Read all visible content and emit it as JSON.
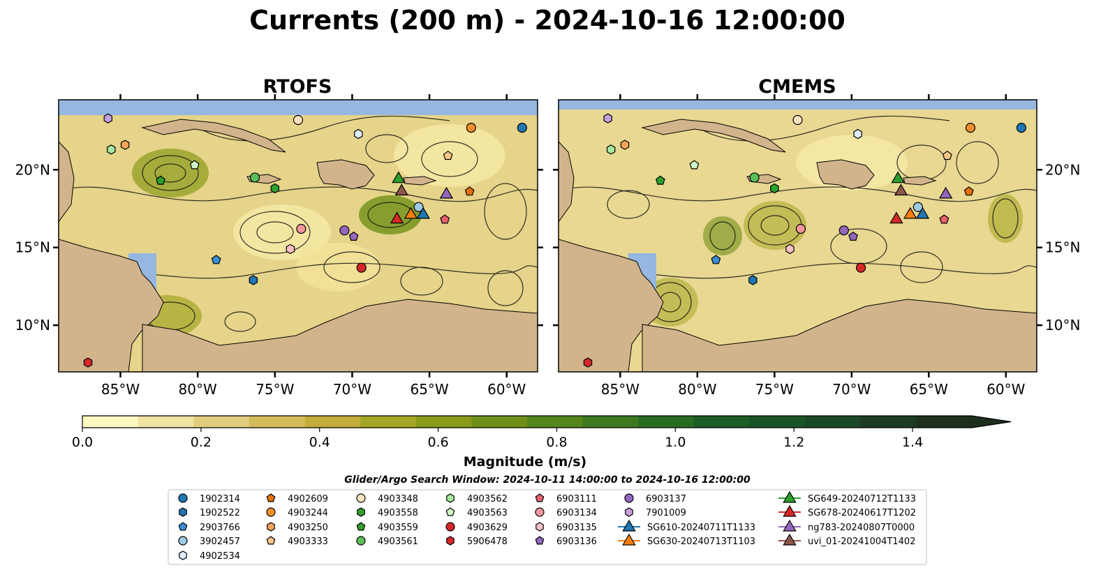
{
  "title": "Currents (200 m) - 2024-10-16 12:00:00",
  "panels": [
    {
      "title": "RTOFS"
    },
    {
      "title": "CMEMS"
    }
  ],
  "lon_ticks": [
    "85°W",
    "80°W",
    "75°W",
    "70°W",
    "65°W",
    "60°W"
  ],
  "lat_ticks": [
    "20°N",
    "15°N",
    "10°N"
  ],
  "map_extent": {
    "lon": [
      -89,
      -58
    ],
    "lat": [
      7,
      24.5
    ]
  },
  "colorbar": {
    "label": "Magnitude (m/s)",
    "ticks": [
      "0.0",
      "0.2",
      "0.4",
      "0.6",
      "0.8",
      "1.0",
      "1.2",
      "1.4"
    ],
    "range": [
      0,
      1.5
    ],
    "colors": [
      "#fdf7c0",
      "#f1e3a1",
      "#e2cd7e",
      "#d4bc5a",
      "#c2ad3c",
      "#a5a626",
      "#8a9b1a",
      "#6f9018",
      "#55851b",
      "#3d7a1f",
      "#286c22",
      "#1a5e25",
      "#185325",
      "#1a4726",
      "#1c3b24",
      "#1d2f1d"
    ]
  },
  "search_window": "Glider/Argo Search Window: 2024-10-11 14:00:00 to 2024-10-16 12:00:00",
  "legend": [
    {
      "label": "1902314",
      "shape": "circle",
      "color": "#1f77b4"
    },
    {
      "label": "1902522",
      "shape": "hexagon",
      "color": "#1f77b4"
    },
    {
      "label": "2903766",
      "shape": "pentagon",
      "color": "#3b8fd6"
    },
    {
      "label": "3902457",
      "shape": "circle",
      "color": "#9ecae1"
    },
    {
      "label": "4902534",
      "shape": "hexagon",
      "color": "#ddeeff"
    },
    {
      "label": "4902609",
      "shape": "pentagon",
      "color": "#e6700a"
    },
    {
      "label": "4903244",
      "shape": "circle",
      "color": "#f28e2b"
    },
    {
      "label": "4903250",
      "shape": "hexagon",
      "color": "#f5a55a"
    },
    {
      "label": "4903333",
      "shape": "pentagon",
      "color": "#f7c68a"
    },
    {
      "label": "4903348",
      "shape": "circle",
      "color": "#fde1c0"
    },
    {
      "label": "4903558",
      "shape": "hexagon",
      "color": "#2ca02c"
    },
    {
      "label": "4903559",
      "shape": "pentagon",
      "color": "#2ca02c"
    },
    {
      "label": "4903561",
      "shape": "circle",
      "color": "#5bc05b"
    },
    {
      "label": "4903562",
      "shape": "hexagon",
      "color": "#a8e6a0"
    },
    {
      "label": "4903563",
      "shape": "pentagon",
      "color": "#d0f5c8"
    },
    {
      "label": "4903629",
      "shape": "circle",
      "color": "#d62728"
    },
    {
      "label": "5906478",
      "shape": "hexagon",
      "color": "#d62728"
    },
    {
      "label": "6903111",
      "shape": "pentagon",
      "color": "#e8616f"
    },
    {
      "label": "6903134",
      "shape": "circle",
      "color": "#f4949c"
    },
    {
      "label": "6903135",
      "shape": "hexagon",
      "color": "#f8c0c6"
    },
    {
      "label": "6903136",
      "shape": "pentagon",
      "color": "#9467bd"
    },
    {
      "label": "6903137",
      "shape": "circle",
      "color": "#9467bd"
    },
    {
      "label": "7901009",
      "shape": "hexagon",
      "color": "#c5a0e0"
    },
    {
      "label": "SG610-20240711T1133",
      "shape": "triangle",
      "color": "#1f77b4"
    },
    {
      "label": "SG630-20240713T1103",
      "shape": "triangle",
      "color": "#ff7f0e"
    },
    {
      "label": "SG649-20240712T1133",
      "shape": "triangle",
      "color": "#2ca02c"
    },
    {
      "label": "SG678-20240617T1202",
      "shape": "triangle",
      "color": "#d62728"
    },
    {
      "label": "ng783-20240807T0000",
      "shape": "triangle",
      "color": "#9467bd"
    },
    {
      "label": "uvi_01-20241004T1402",
      "shape": "triangle",
      "color": "#8c564b"
    }
  ],
  "markers": [
    {
      "label": "1902314",
      "lon": -59.0,
      "lat": 22.7
    },
    {
      "label": "1902522",
      "lon": -76.4,
      "lat": 12.9
    },
    {
      "label": "2903766",
      "lon": -78.8,
      "lat": 14.2
    },
    {
      "label": "3902457",
      "lon": -65.7,
      "lat": 17.6
    },
    {
      "label": "4902534",
      "lon": -69.6,
      "lat": 22.3
    },
    {
      "label": "4902609",
      "lon": -62.4,
      "lat": 18.6
    },
    {
      "label": "4903244",
      "lon": -62.3,
      "lat": 22.7
    },
    {
      "label": "4903250",
      "lon": -84.7,
      "lat": 21.6
    },
    {
      "label": "4903333",
      "lon": -63.8,
      "lat": 20.9
    },
    {
      "label": "4903348",
      "lon": -73.5,
      "lat": 23.2
    },
    {
      "label": "4903558",
      "lon": -75.0,
      "lat": 18.8
    },
    {
      "label": "4903559",
      "lon": -82.4,
      "lat": 19.3
    },
    {
      "label": "4903561",
      "lon": -76.3,
      "lat": 19.5
    },
    {
      "label": "4903562",
      "lon": -85.6,
      "lat": 21.3
    },
    {
      "label": "4903563",
      "lon": -80.2,
      "lat": 20.3
    },
    {
      "label": "4903629",
      "lon": -69.4,
      "lat": 13.7
    },
    {
      "label": "5906478",
      "lon": -87.1,
      "lat": 7.6
    },
    {
      "label": "6903111",
      "lon": -64.0,
      "lat": 16.8
    },
    {
      "label": "6903134",
      "lon": -73.3,
      "lat": 16.2
    },
    {
      "label": "6903135",
      "lon": -74.0,
      "lat": 14.9
    },
    {
      "label": "6903136",
      "lon": -69.9,
      "lat": 15.7
    },
    {
      "label": "6903137",
      "lon": -70.5,
      "lat": 16.1
    },
    {
      "label": "7901009",
      "lon": -85.8,
      "lat": 23.3
    },
    {
      "label": "SG610-20240711T1133",
      "lon": -65.4,
      "lat": 17.1
    },
    {
      "label": "SG630-20240713T1103",
      "lon": -66.2,
      "lat": 17.1
    },
    {
      "label": "SG649-20240712T1133",
      "lon": -67.0,
      "lat": 19.4
    },
    {
      "label": "SG678-20240617T1202",
      "lon": -67.1,
      "lat": 16.8
    },
    {
      "label": "ng783-20240807T0000",
      "lon": -63.9,
      "lat": 18.4
    },
    {
      "label": "uvi_01-20241004T1402",
      "lon": -66.8,
      "lat": 18.6
    }
  ]
}
